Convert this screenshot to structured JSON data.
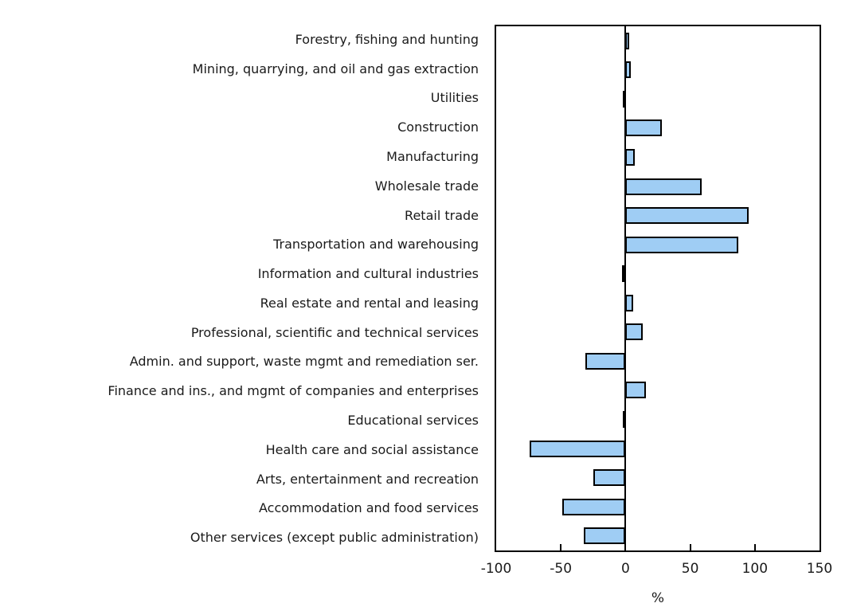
{
  "chart_data": {
    "type": "bar",
    "orientation": "horizontal",
    "categories": [
      "Forestry, fishing and hunting",
      "Mining, quarrying, and oil and gas extraction",
      "Utilities",
      "Construction",
      "Manufacturing",
      "Wholesale trade",
      "Retail trade",
      "Transportation and warehousing",
      "Information and cultural industries",
      "Real estate and rental and leasing",
      "Professional, scientific and technical services",
      "Admin. and support, waste mgmt and remediation ser.",
      "Finance and ins., and mgmt of companies and enterprises",
      "Educational services",
      "Health care and social assistance",
      "Arts, entertainment and recreation",
      "Accommodation and food services",
      "Other services (except public administration)"
    ],
    "values": [
      3,
      4,
      -2,
      28,
      7,
      59,
      95,
      87,
      -3,
      6,
      13,
      -31,
      16,
      -1,
      -74,
      -25,
      -49,
      -32
    ],
    "xlabel": "%",
    "xlim": [
      -100,
      150
    ],
    "xticks": [
      -100,
      -50,
      0,
      50,
      100,
      150
    ],
    "grid": false,
    "legend": false,
    "colors": {
      "bar_fill": "#9FCDF4",
      "bar_border": "#000000",
      "axis": "#000000",
      "text": "#1a1a1a",
      "background": "#ffffff"
    }
  }
}
